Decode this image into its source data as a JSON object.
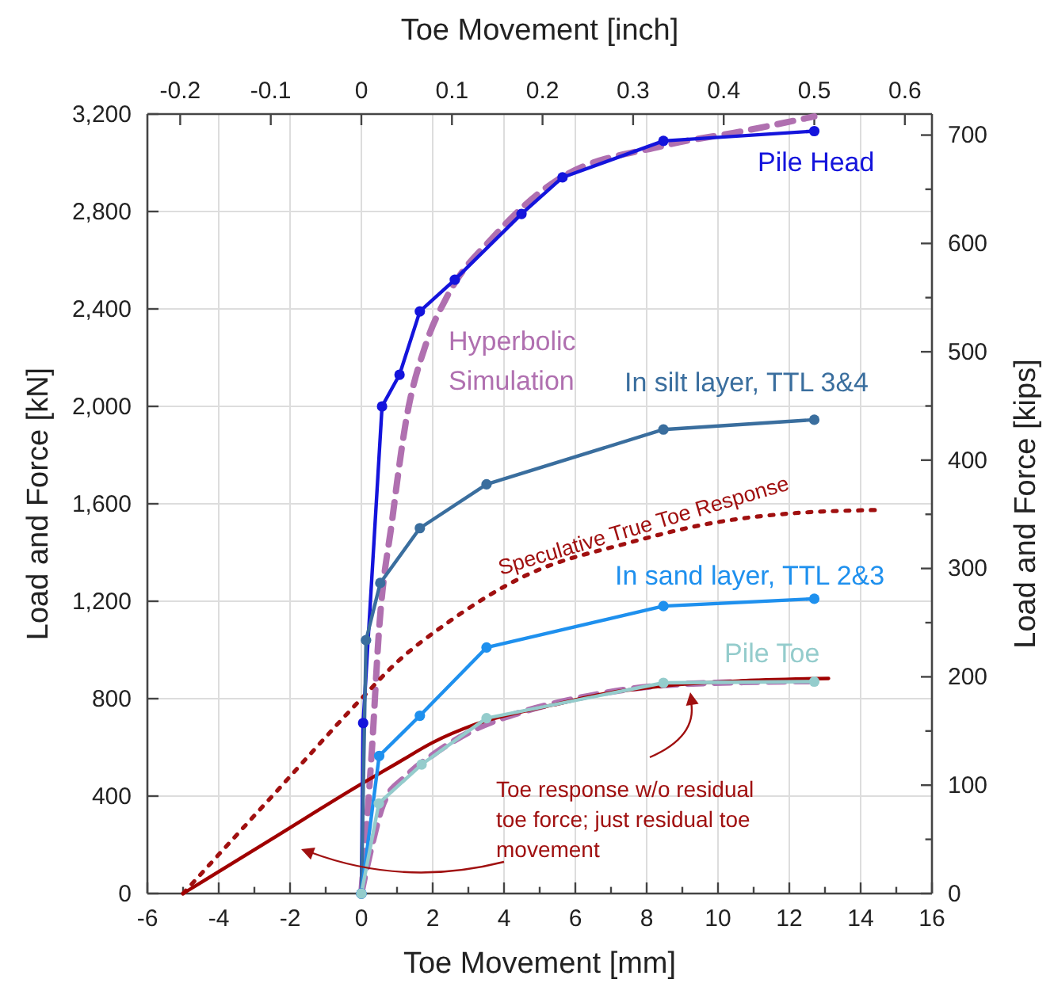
{
  "chart_data": {
    "type": "line",
    "xlabel": "Toe Movement [mm]",
    "ylabel": "Load and Force [kN]",
    "y2label": "Load and Force [kips]",
    "x2label": "Toe Movement [inch]",
    "xlim": [
      -6,
      16
    ],
    "xticks": [
      -6,
      {
        "value": -5,
        "label": null
      },
      -4,
      {
        "value": -3,
        "label": null
      },
      -2,
      {
        "value": -1,
        "label": null
      },
      0,
      {
        "value": 1,
        "label": null
      },
      2,
      {
        "value": 3,
        "label": null
      },
      4,
      {
        "value": 5,
        "label": null
      },
      6,
      {
        "value": 7,
        "label": null
      },
      8,
      {
        "value": 9,
        "label": null
      },
      10,
      {
        "value": 11,
        "label": null
      },
      12,
      {
        "value": 13,
        "label": null
      },
      14,
      {
        "value": 15,
        "label": null
      },
      16
    ],
    "ylim": [
      0,
      3200
    ],
    "yticks": [
      0,
      400,
      800,
      {
        "value": 1200,
        "label": "1,200"
      },
      {
        "value": 1600,
        "label": "1,600"
      },
      {
        "value": 2000,
        "label": "2,000"
      },
      {
        "value": 2400,
        "label": "2,400"
      },
      {
        "value": 2800,
        "label": "2,800"
      },
      {
        "value": 3200,
        "label": "3,200"
      }
    ],
    "y2lim": [
      0,
      719.4
    ],
    "y2ticks": [
      0,
      {
        "value": 50,
        "label": null
      },
      100,
      {
        "value": 150,
        "label": null
      },
      200,
      {
        "value": 250,
        "label": null
      },
      300,
      {
        "value": 350,
        "label": null
      },
      400,
      {
        "value": 450,
        "label": null
      },
      500,
      {
        "value": 550,
        "label": null
      },
      600,
      {
        "value": 650,
        "label": null
      },
      700
    ],
    "x2lim": [
      -0.2362,
      0.6299
    ],
    "x2ticks": [
      -0.2,
      -0.1,
      0,
      0.1,
      0.2,
      0.3,
      0.4,
      0.5,
      0.6
    ],
    "grid": true,
    "series": [
      {
        "name": "Pile Head",
        "color": "#1414dc",
        "marker": "circle",
        "line_style": "solid",
        "x": [
          0,
          0.05,
          0.58,
          1.07,
          1.64,
          2.62,
          4.49,
          5.64,
          8.47,
          12.7
        ],
        "values": [
          0,
          700,
          2000,
          2130,
          2390,
          2520,
          2790,
          2940,
          3090,
          3130
        ]
      },
      {
        "name": "Hyperbolic Simulation",
        "color": "#b070b0",
        "marker": "none",
        "line_style": "dashed",
        "x": [
          0,
          0.3,
          0.49,
          0.87,
          1.24,
          1.82,
          2.4,
          3.73,
          5.5,
          8.47,
          10.7,
          12.7
        ],
        "values": [
          0,
          600,
          1070,
          1540,
          1930,
          2260,
          2450,
          2700,
          2930,
          3070,
          3130,
          3190
        ]
      },
      {
        "name": "In silt layer, TTL 3&4",
        "color": "#3a6e9e",
        "marker": "circle",
        "line_style": "solid",
        "x": [
          0,
          0.13,
          0.53,
          1.64,
          3.51,
          8.47,
          12.7
        ],
        "values": [
          0,
          1040,
          1275,
          1500,
          1680,
          1905,
          1945
        ]
      },
      {
        "name": "Speculative True Toe Response",
        "color": "#a01010",
        "marker": "none",
        "line_style": "dotted",
        "x": [
          -5,
          -2.5,
          0,
          1,
          2.4,
          4.6,
          7.5,
          9.8,
          12,
          14.6
        ],
        "values": [
          0,
          400,
          800,
          950,
          1110,
          1305,
          1440,
          1520,
          1560,
          1575
        ]
      },
      {
        "name": "In sand layer, TTL 2&3",
        "color": "#1e90ee",
        "marker": "circle",
        "line_style": "solid",
        "x": [
          0,
          0.5,
          1.64,
          3.51,
          8.47,
          12.7
        ],
        "values": [
          0,
          565,
          730,
          1010,
          1180,
          1210
        ]
      },
      {
        "name": "Pile Toe",
        "color": "#94cccc",
        "marker": "circle",
        "line_style": "solid",
        "x": [
          0,
          0.49,
          1.69,
          3.51,
          8.47,
          12.7
        ],
        "values": [
          0,
          370,
          530,
          720,
          865,
          870
        ]
      },
      {
        "color": "#b070b0",
        "marker": "none",
        "line_style": "dashed",
        "x": [
          0,
          0.3,
          0.62,
          1.24,
          1.96,
          3.2,
          4.5,
          6,
          8.47,
          10.7,
          12.7
        ],
        "values": [
          0,
          200,
          370,
          480,
          565,
          675,
          745,
          800,
          855,
          868,
          872
        ]
      },
      {
        "color": "#a00000",
        "marker": "none",
        "line_style": "solid",
        "x": [
          -5,
          -2.5,
          0,
          1,
          2,
          3.2,
          5.4,
          7,
          8.47,
          10.5,
          13.1
        ],
        "values": [
          0,
          225,
          450,
          535,
          620,
          695,
          775,
          825,
          852,
          872,
          883
        ]
      }
    ],
    "annotations": [
      "Toe response w/o residual toe force; just residual toe movement"
    ]
  }
}
